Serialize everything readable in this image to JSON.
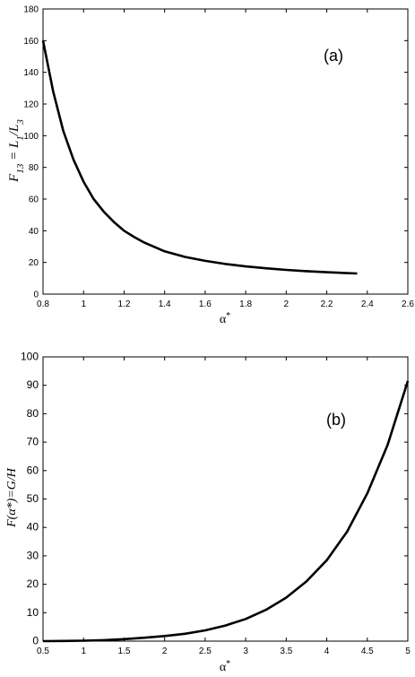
{
  "chart_data": [
    {
      "type": "line",
      "annotation": "(a)",
      "xlabel": "α*",
      "ylabel": "F13 = L1/L3",
      "xlim": [
        0.8,
        2.6
      ],
      "ylim": [
        0,
        180
      ],
      "xticks": [
        0.8,
        1,
        1.2,
        1.4,
        1.6,
        1.8,
        2,
        2.2,
        2.4,
        2.6
      ],
      "xtick_labels": [
        "0.8",
        "1",
        "1.2",
        "1.4",
        "1.6",
        "1.8",
        "2",
        "2.2",
        "2.4",
        "2.6"
      ],
      "yticks": [
        0,
        20,
        40,
        60,
        80,
        100,
        120,
        140,
        160,
        180
      ],
      "ytick_labels": [
        "0",
        "20",
        "40",
        "60",
        "80",
        "100",
        "120",
        "140",
        "160",
        "180"
      ],
      "grid": false,
      "series": [
        {
          "x": [
            0.8,
            0.85,
            0.9,
            0.95,
            1.0,
            1.05,
            1.1,
            1.15,
            1.2,
            1.25,
            1.3,
            1.4,
            1.5,
            1.6,
            1.7,
            1.8,
            1.9,
            2.0,
            2.1,
            2.2,
            2.35
          ],
          "y": [
            160,
            128,
            103,
            85,
            71,
            60,
            52,
            45.5,
            40,
            36,
            32.5,
            27,
            23.5,
            21,
            19,
            17.5,
            16.3,
            15.3,
            14.5,
            13.8,
            13
          ]
        }
      ]
    },
    {
      "type": "line",
      "annotation": "(b)",
      "xlabel": "α*",
      "ylabel": "F(α*)=G/H",
      "xlim": [
        0.5,
        5
      ],
      "ylim": [
        0,
        100
      ],
      "xticks": [
        0.5,
        1,
        1.5,
        2,
        2.5,
        3,
        3.5,
        4,
        4.5,
        5
      ],
      "xtick_labels": [
        "0.5",
        "1",
        "1.5",
        "2",
        "2.5",
        "3",
        "3.5",
        "4",
        "4.5",
        "5"
      ],
      "yticks": [
        0,
        10,
        20,
        30,
        40,
        50,
        60,
        70,
        80,
        90,
        100
      ],
      "ytick_labels": [
        "0",
        "10",
        "20",
        "30",
        "40",
        "50",
        "60",
        "70",
        "80",
        "90",
        "100"
      ],
      "grid": false,
      "series": [
        {
          "x": [
            0.5,
            0.75,
            1.0,
            1.25,
            1.5,
            1.75,
            2.0,
            2.25,
            2.5,
            2.75,
            3.0,
            3.25,
            3.5,
            3.75,
            4.0,
            4.25,
            4.5,
            4.75,
            5.0
          ],
          "y": [
            0,
            0.05,
            0.15,
            0.35,
            0.7,
            1.2,
            1.8,
            2.6,
            3.8,
            5.5,
            7.8,
            11,
            15.3,
            21,
            28.5,
            38.5,
            52,
            69,
            91.5
          ]
        }
      ]
    }
  ]
}
